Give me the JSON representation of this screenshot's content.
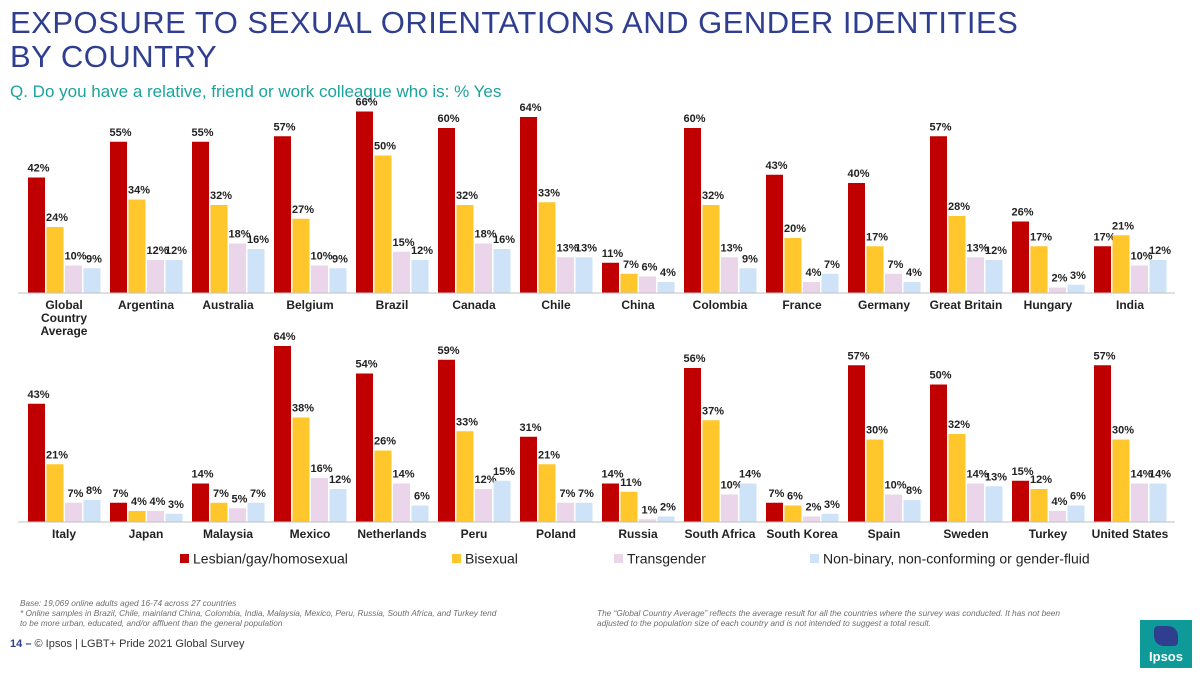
{
  "title_line1": "EXPOSURE TO SEXUAL ORIENTATIONS AND GENDER IDENTITIES",
  "title_line2": "BY COUNTRY",
  "subtitle": "Q. Do you have a relative, friend or work colleague who is: % Yes",
  "footnote_base": "Base: 19,069 online adults aged 16-74 across 27 countries",
  "footnote_samples_1": "* Online samples in Brazil, Chile, mainland China, Colombia, India, Malaysia, Mexico, Peru, Russia, South Africa, and Turkey tend",
  "footnote_samples_2": "to be more urban, educated, and/or affluent than the general population",
  "footnote_avg_1": "The “Global  Country Average” reflects the average result for all the countries where the survey was conducted. It has not been",
  "footnote_avg_2": "adjusted to the population size of each country and is not intended to suggest a total result.",
  "page_number": "14",
  "page_separator": "–",
  "page_credit": "© Ipsos | LGBT+ Pride 2021 Global Survey",
  "logo_text": "Ipsos",
  "colors": {
    "series": [
      "#C00000",
      "#FFC72C",
      "#EBD5EA",
      "#CFE3F8"
    ]
  },
  "chart_data": {
    "type": "bar",
    "ylim": [
      0,
      66
    ],
    "series_names": [
      "Lesbian/gay/homosexual",
      "Bisexual",
      "Transgender",
      "Non-binary, non-conforming or gender-fluid"
    ],
    "rows": [
      {
        "categories": [
          "Global Country Average",
          "Argentina",
          "Australia",
          "Belgium",
          "Brazil",
          "Canada",
          "Chile",
          "China",
          "Colombia",
          "France",
          "Germany",
          "Great Britain",
          "Hungary",
          "India"
        ],
        "label_lines": [
          [
            "Global",
            "Country",
            "Average"
          ],
          [
            "Argentina"
          ],
          [
            "Australia"
          ],
          [
            "Belgium"
          ],
          [
            "Brazil"
          ],
          [
            "Canada"
          ],
          [
            "Chile"
          ],
          [
            "China"
          ],
          [
            "Colombia"
          ],
          [
            "France"
          ],
          [
            "Germany"
          ],
          [
            "Great Britain"
          ],
          [
            "Hungary"
          ],
          [
            "India"
          ]
        ],
        "series": [
          {
            "name": "Lesbian/gay/homosexual",
            "values": [
              42,
              55,
              55,
              57,
              66,
              60,
              64,
              11,
              60,
              43,
              40,
              57,
              26,
              17
            ]
          },
          {
            "name": "Bisexual",
            "values": [
              24,
              34,
              32,
              27,
              50,
              32,
              33,
              7,
              32,
              20,
              17,
              28,
              17,
              21
            ]
          },
          {
            "name": "Transgender",
            "values": [
              10,
              12,
              18,
              10,
              15,
              18,
              13,
              6,
              13,
              4,
              7,
              13,
              2,
              10
            ]
          },
          {
            "name": "Non-binary, non-conforming or gender-fluid",
            "values": [
              9,
              12,
              16,
              9,
              12,
              16,
              13,
              4,
              9,
              7,
              4,
              12,
              3,
              12
            ]
          }
        ]
      },
      {
        "categories": [
          "Italy",
          "Japan",
          "Malaysia",
          "Mexico",
          "Netherlands",
          "Peru",
          "Poland",
          "Russia",
          "South Africa",
          "South Korea",
          "Spain",
          "Sweden",
          "Turkey",
          "United States"
        ],
        "label_lines": [
          [
            "Italy"
          ],
          [
            "Japan"
          ],
          [
            "Malaysia"
          ],
          [
            "Mexico"
          ],
          [
            "Netherlands"
          ],
          [
            "Peru"
          ],
          [
            "Poland"
          ],
          [
            "Russia"
          ],
          [
            "South Africa"
          ],
          [
            "South Korea"
          ],
          [
            "Spain"
          ],
          [
            "Sweden"
          ],
          [
            "Turkey"
          ],
          [
            "United States"
          ]
        ],
        "series": [
          {
            "name": "Lesbian/gay/homosexual",
            "values": [
              43,
              7,
              14,
              64,
              54,
              59,
              31,
              14,
              56,
              7,
              57,
              50,
              15,
              57
            ]
          },
          {
            "name": "Bisexual",
            "values": [
              21,
              4,
              7,
              38,
              26,
              33,
              21,
              11,
              37,
              6,
              30,
              32,
              12,
              30
            ]
          },
          {
            "name": "Transgender",
            "values": [
              7,
              4,
              5,
              16,
              14,
              12,
              7,
              1,
              10,
              2,
              10,
              14,
              4,
              14
            ]
          },
          {
            "name": "Non-binary, non-conforming or gender-fluid",
            "values": [
              8,
              3,
              7,
              12,
              6,
              15,
              7,
              2,
              14,
              3,
              8,
              13,
              6,
              14
            ]
          }
        ]
      }
    ]
  }
}
